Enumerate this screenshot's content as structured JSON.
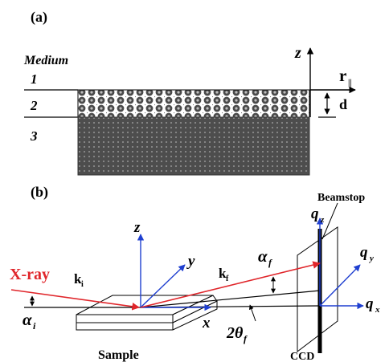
{
  "panel_a": {
    "label": "(a)",
    "medium_label": "Medium",
    "layer_1": "1",
    "layer_2": "2",
    "layer_3": "3",
    "z_axis": "z",
    "r_axis_base": "r",
    "r_axis_sub": "||",
    "thickness": "d"
  },
  "panel_b": {
    "label": "(b)",
    "beamstop": "Beamstop",
    "xray": "X-ray",
    "ki_base": "k",
    "ki_sub": "i",
    "kf_base": "k",
    "kf_sub": "f",
    "alpha_i_base": "α",
    "alpha_i_sub": "i",
    "alpha_f_base": "α",
    "alpha_f_sub": "f",
    "two_theta_base": "2θ",
    "two_theta_sub": "f",
    "z": "z",
    "y": "y",
    "x": "x",
    "qz_base": "q",
    "qz_sub": "z",
    "qy_base": "q",
    "qy_sub": "y",
    "qx_base": "q",
    "qx_sub": "x",
    "sample": "Sample",
    "ccd": "CCD",
    "colors": {
      "red": "#e0262b",
      "blue": "#1f3fd0"
    }
  }
}
